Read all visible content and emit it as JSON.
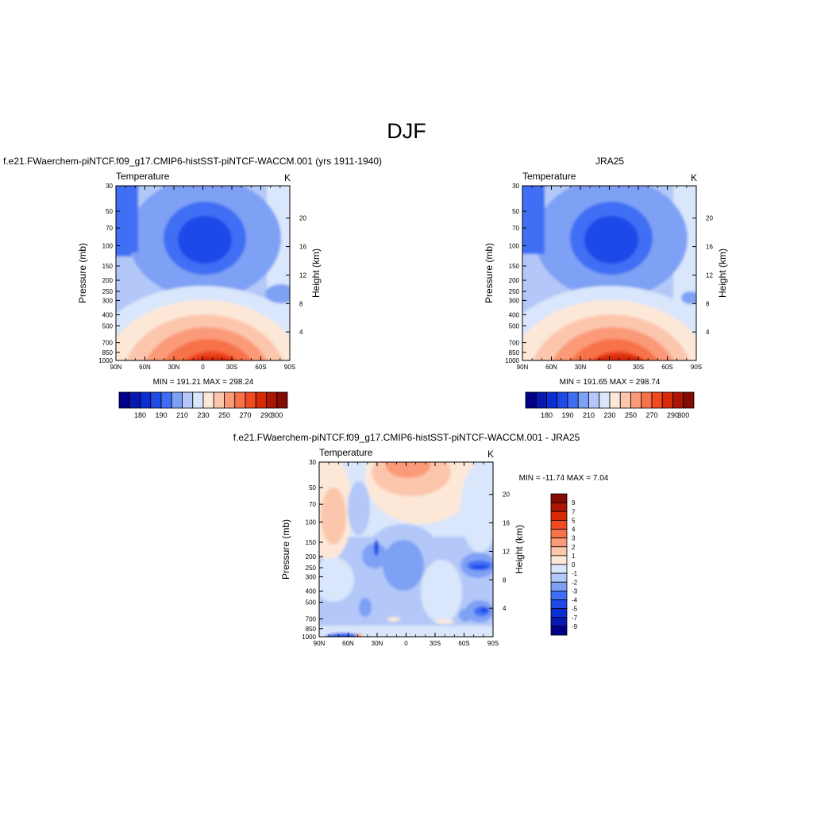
{
  "page": {
    "title": "DJF"
  },
  "palette": {
    "cool": [
      "#00008a",
      "#0818b0",
      "#0b2ed0",
      "#1f4ae8",
      "#3f6ef4",
      "#7ea0f5",
      "#b3c8f8",
      "#d9e6fb"
    ],
    "warm": [
      "#fde8d8",
      "#fcc6ad",
      "#fa9a78",
      "#f77248",
      "#ef4a22",
      "#d92a08",
      "#ad1604",
      "#820b02"
    ]
  },
  "chart_data": [
    {
      "type": "contour",
      "title_left": "f.e21.FWaerchem-piNTCF.f09_g17.CMIP6-histSST-piNTCF-WACCM.001 (yrs 1911-1940)",
      "variable": "Temperature",
      "units": "K",
      "ylabel": "Pressure (mb)",
      "ylabel_right": "Height (km)",
      "x_ticks": [
        "90N",
        "60N",
        "30N",
        "0",
        "30S",
        "60S",
        "90S"
      ],
      "y_ticks": [
        30,
        50,
        70,
        100,
        150,
        200,
        250,
        300,
        400,
        500,
        700,
        850,
        1000
      ],
      "height_ticks": [
        20,
        16,
        12,
        8,
        4
      ],
      "stats": "MIN = 191.21  MAX = 298.24",
      "colorbar": {
        "levels": [
          175,
          180,
          185,
          190,
          200,
          210,
          220,
          230,
          240,
          250,
          260,
          270,
          280,
          290,
          300
        ],
        "labels": [
          "180",
          "190",
          "210",
          "230",
          "250",
          "270",
          "290",
          "300"
        ]
      }
    },
    {
      "type": "contour",
      "title_right": "JRA25",
      "variable": "Temperature",
      "units": "K",
      "ylabel": "Pressure (mb)",
      "ylabel_right": "Height (km)",
      "x_ticks": [
        "90N",
        "60N",
        "30N",
        "0",
        "30S",
        "60S",
        "90S"
      ],
      "y_ticks": [
        30,
        50,
        70,
        100,
        150,
        200,
        250,
        300,
        400,
        500,
        700,
        850,
        1000
      ],
      "height_ticks": [
        20,
        16,
        12,
        8,
        4
      ],
      "stats": "MIN = 191.65  MAX = 298.74",
      "colorbar": {
        "levels": [
          175,
          180,
          185,
          190,
          200,
          210,
          220,
          230,
          240,
          250,
          260,
          270,
          280,
          290,
          300
        ],
        "labels": [
          "180",
          "190",
          "210",
          "230",
          "250",
          "270",
          "290",
          "300"
        ]
      }
    },
    {
      "type": "contour",
      "title": "f.e21.FWaerchem-piNTCF.f09_g17.CMIP6-histSST-piNTCF-WACCM.001 - JRA25",
      "variable": "Temperature",
      "units": "K",
      "ylabel": "Pressure (mb)",
      "ylabel_right": "Height (km)",
      "x_ticks": [
        "90N",
        "60N",
        "30N",
        "0",
        "30S",
        "60S",
        "90S"
      ],
      "y_ticks": [
        30,
        50,
        70,
        100,
        150,
        200,
        250,
        300,
        400,
        500,
        700,
        850,
        1000
      ],
      "height_ticks": [
        20,
        16,
        12,
        8,
        4
      ],
      "stats": "MIN = -11.74  MAX =   7.04",
      "colorbar": {
        "levels": [
          9,
          7,
          5,
          4,
          3,
          2,
          1,
          0,
          -1,
          -2,
          -3,
          -4,
          -5,
          -7,
          -9
        ],
        "labels": [
          "9",
          "7",
          "5",
          "4",
          "3",
          "2",
          "1",
          "0",
          "-1",
          "-2",
          "-3",
          "-4",
          "-5",
          "-7",
          "-9"
        ]
      }
    }
  ]
}
